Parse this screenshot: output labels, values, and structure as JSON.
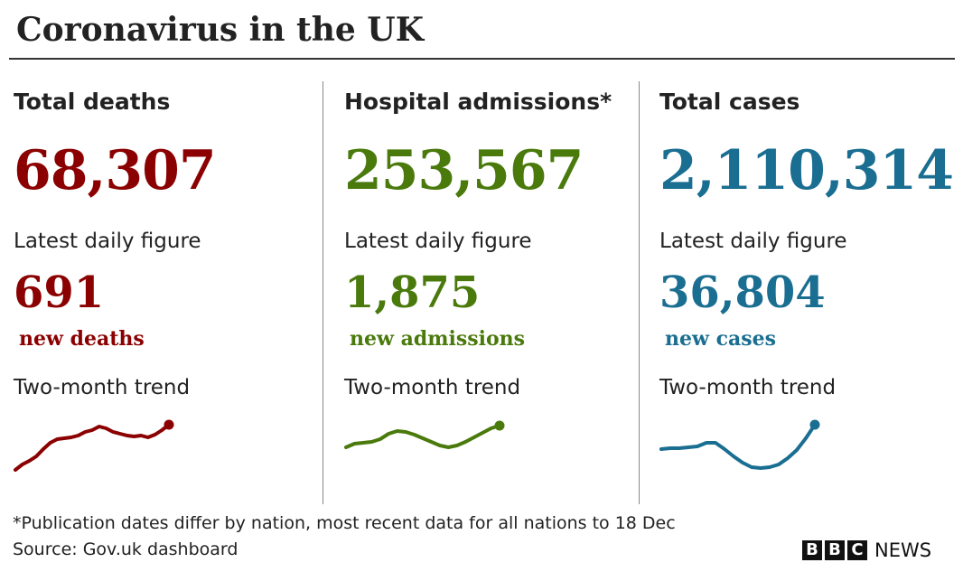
{
  "title": "Coronavirus in the UK",
  "panels": [
    {
      "heading": "Total deaths",
      "total": "68,307",
      "daily_label": "Latest daily figure",
      "daily": "691",
      "daily_unit": "new deaths",
      "trend_label": "Two-month trend",
      "color": "#8b0000"
    },
    {
      "heading": "Hospital admissions*",
      "total": "253,567",
      "daily_label": "Latest daily figure",
      "daily": "1,875",
      "daily_unit": "new admissions",
      "trend_label": "Two-month trend",
      "color": "#4a7a0c"
    },
    {
      "heading": "Total cases",
      "total": "2,110,314",
      "daily_label": "Latest daily figure",
      "daily": "36,804",
      "daily_unit": "new cases",
      "trend_label": "Two-month trend",
      "color": "#1a6e91"
    }
  ],
  "chart_data": [
    {
      "type": "line",
      "title": "Two-month trend",
      "series": [
        {
          "values": [
            0,
            6,
            10,
            15,
            23,
            30,
            34,
            35,
            36,
            38,
            42,
            44,
            48,
            46,
            42,
            40,
            38,
            37,
            38,
            36,
            39,
            44,
            50
          ]
        }
      ],
      "color": "#8b0000"
    },
    {
      "type": "line",
      "title": "Two-month trend",
      "series": [
        {
          "values": [
            0,
            4,
            5,
            6,
            9,
            15,
            18,
            17,
            14,
            10,
            6,
            2,
            0,
            2,
            6,
            11,
            16,
            21,
            24
          ]
        }
      ],
      "color": "#4a7a0c"
    },
    {
      "type": "line",
      "title": "Two-month trend",
      "series": [
        {
          "values": [
            21,
            22,
            22,
            23,
            24,
            28,
            28,
            21,
            13,
            6,
            1,
            0,
            1,
            4,
            11,
            20,
            33,
            48
          ]
        }
      ],
      "color": "#1a6e91"
    }
  ],
  "footnote": "*Publication dates differ by nation, most recent data for all nations to 18 Dec",
  "source": "Source: Gov.uk dashboard",
  "logo": {
    "letters": [
      "B",
      "B",
      "C"
    ],
    "text": "NEWS"
  }
}
